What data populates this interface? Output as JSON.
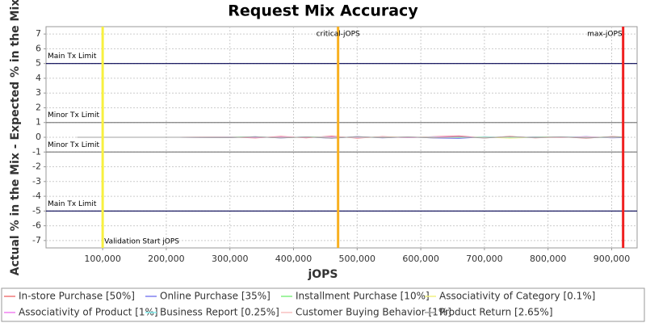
{
  "chart_data": {
    "type": "line",
    "title": "Request Mix Accuracy",
    "x_label": "jOPS",
    "y_label": "Actual % in the Mix - Expected % in the Mix",
    "x": [
      60000,
      140000,
      220000,
      300000,
      340000,
      380000,
      420000,
      460000,
      500000,
      540000,
      580000,
      620000,
      660000,
      700000,
      740000,
      780000,
      820000,
      860000,
      900000,
      920000
    ],
    "series": [
      {
        "name": "In-store Purchase [50%]",
        "color": "#f07878",
        "values": [
          0,
          0,
          0,
          0.02,
          -0.05,
          0.06,
          -0.04,
          0.08,
          -0.06,
          0.05,
          -0.03,
          0.04,
          0.1,
          -0.05,
          0.06,
          -0.04,
          0.03,
          -0.06,
          0.05,
          0.02
        ]
      },
      {
        "name": "Online Purchase [35%]",
        "color": "#8080f0",
        "values": [
          0,
          0,
          0,
          -0.02,
          0.04,
          -0.05,
          0.03,
          -0.07,
          0.05,
          -0.04,
          0.03,
          -0.05,
          -0.08,
          0.04,
          -0.05,
          0.03,
          -0.02,
          0.05,
          -0.04,
          -0.02
        ]
      },
      {
        "name": "Installment Purchase [10%]",
        "color": "#80f080",
        "values": [
          0,
          0,
          0,
          0.01,
          0.02,
          -0.02,
          0.01,
          0.03,
          -0.02,
          0.02,
          -0.01,
          0.02,
          -0.02,
          0.03,
          -0.02,
          0.01,
          0.02,
          -0.01,
          0.02,
          0.01
        ]
      },
      {
        "name": "Associativity of Category [0.1%]",
        "color": "#f0f080",
        "values": [
          0,
          0,
          0,
          0,
          0.01,
          -0.01,
          0,
          0.01,
          -0.01,
          0,
          0.01,
          -0.01,
          0,
          0.01,
          -0.06,
          0,
          0.01,
          -0.01,
          0,
          0
        ]
      },
      {
        "name": "Associativity of Product [1%]",
        "color": "#f080f0",
        "values": [
          0,
          0,
          0,
          0.01,
          -0.02,
          0.02,
          -0.01,
          0.03,
          -0.02,
          0.01,
          -0.02,
          0.02,
          0.05,
          -0.02,
          0.02,
          -0.01,
          0.02,
          -0.02,
          0.01,
          0
        ]
      },
      {
        "name": "Business Report [0.25%]",
        "color": "#80f0f0",
        "values": [
          0,
          0,
          0,
          0,
          0.01,
          -0.01,
          0.01,
          -0.01,
          0.01,
          -0.01,
          0.01,
          0,
          -0.01,
          0.01,
          0,
          -0.01,
          0.01,
          0,
          -0.01,
          0
        ]
      },
      {
        "name": "Customer Buying Behavior [1%]",
        "color": "#f8c0c0",
        "values": [
          0,
          0,
          0,
          -0.01,
          0.02,
          -0.02,
          0.01,
          -0.03,
          0.02,
          -0.01,
          0.02,
          -0.02,
          0.02,
          -0.02,
          0.03,
          -0.01,
          -0.02,
          0.02,
          -0.01,
          0
        ]
      },
      {
        "name": "Product Return [2.65%]",
        "color": "#a0a0a0",
        "values": [
          0,
          0,
          0,
          -0.02,
          0.03,
          -0.04,
          0.02,
          -0.06,
          0.04,
          -0.03,
          0.02,
          -0.04,
          0.03,
          -0.05,
          0.04,
          -0.02,
          0.03,
          -0.04,
          0.02,
          -0.01
        ]
      }
    ],
    "xlim": [
      11000,
      940000
    ],
    "xticks": [
      {
        "value": 100000,
        "label": "100,000"
      },
      {
        "value": 200000,
        "label": "200,000"
      },
      {
        "value": 300000,
        "label": "300,000"
      },
      {
        "value": 400000,
        "label": "400,000"
      },
      {
        "value": 500000,
        "label": "500,000"
      },
      {
        "value": 600000,
        "label": "600,000"
      },
      {
        "value": 700000,
        "label": "700,000"
      },
      {
        "value": 800000,
        "label": "800,000"
      },
      {
        "value": 900000,
        "label": "900,000"
      }
    ],
    "ylim": [
      -7.5,
      7.5
    ],
    "yticks": [
      -7,
      -6,
      -5,
      -4,
      -3,
      -2,
      -1,
      0,
      1,
      2,
      3,
      4,
      5,
      6,
      7
    ],
    "grid": true,
    "reference_lines": [
      {
        "value": 5,
        "label": "Main Tx Limit",
        "color": "#000050"
      },
      {
        "value": 1,
        "label": "Minor Tx Limit",
        "color": "#808080"
      },
      {
        "value": -1,
        "label": "Minor Tx Limit",
        "color": "#808080"
      },
      {
        "value": -5,
        "label": "Main Tx Limit",
        "color": "#000050"
      }
    ],
    "x_markers": [
      {
        "value": 100000,
        "label": "Validation Start jOPS",
        "color": "#f8f040"
      },
      {
        "value": 470000,
        "label": "critical-jOPS",
        "color": "#f8b020"
      },
      {
        "value": 918000,
        "label": "max-jOPS",
        "color": "#f02020"
      }
    ]
  }
}
